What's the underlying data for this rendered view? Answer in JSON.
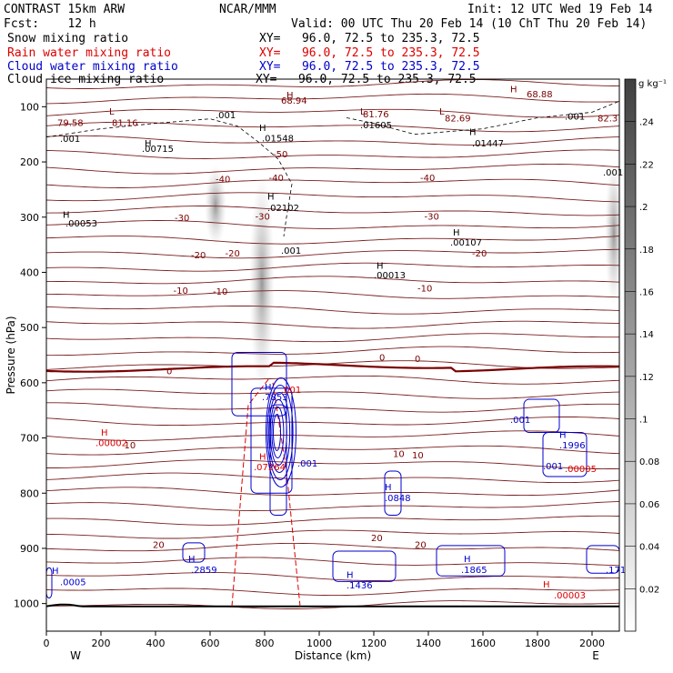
{
  "header": {
    "left1": "CONTRAST 15km ARW",
    "left2": "Fcst:    12 h",
    "center": "NCAR/MMM",
    "init": "Init: 12 UTC Wed 19 Feb 14",
    "valid": "Valid: 00 UTC Thu 20 Feb 14 (10 ChT Thu 20 Feb 14)",
    "fields": [
      {
        "name": "Snow mixing ratio",
        "xy": "XY=   96.0, 72.5 to 235.3, 72.5",
        "color": "#000000"
      },
      {
        "name": "Rain water mixing ratio",
        "xy": "XY=   96.0, 72.5 to 235.3, 72.5",
        "color": "#dd0000"
      },
      {
        "name": "Cloud water mixing ratio",
        "xy": "XY=   96.0, 72.5 to 235.3, 72.5",
        "color": "#0000cc"
      },
      {
        "name": "Cloud ice mixing ratio",
        "xy": "XY=   96.0, 72.5 to 235.3, 72.5",
        "color": "#000000"
      }
    ]
  },
  "chart_data": {
    "type": "cross-section contour",
    "xlabel": "Distance (km)",
    "ylabel": "Pressure (hPa)",
    "x_ticks": [
      0,
      200,
      400,
      600,
      800,
      1000,
      1200,
      1400,
      1600,
      1800,
      2000
    ],
    "y_ticks": [
      100,
      200,
      300,
      400,
      500,
      600,
      700,
      800,
      900,
      1000
    ],
    "xlim": [
      0,
      2100
    ],
    "ylim": [
      1050,
      50
    ],
    "end_labels": {
      "left": "W",
      "right": "E"
    },
    "colorbar": {
      "unit": "g kg⁻¹",
      "ticks": [
        "0.02",
        "0.04",
        "0.06",
        "0.08",
        ".1",
        ".12",
        ".14",
        ".16",
        ".18",
        ".2",
        ".22",
        ".24"
      ],
      "min": 0,
      "max": 0.26
    },
    "temperature_contour_labels": [
      {
        "text": "-50",
        "x": 830,
        "p": 185
      },
      {
        "text": "-40",
        "x": 620,
        "p": 230
      },
      {
        "text": "-40",
        "x": 815,
        "p": 228
      },
      {
        "text": "-40",
        "x": 1370,
        "p": 228
      },
      {
        "text": "-30",
        "x": 470,
        "p": 300
      },
      {
        "text": "-30",
        "x": 765,
        "p": 298
      },
      {
        "text": "-30",
        "x": 1385,
        "p": 298
      },
      {
        "text": "-20",
        "x": 530,
        "p": 368
      },
      {
        "text": "-20",
        "x": 655,
        "p": 365
      },
      {
        "text": "-20",
        "x": 1560,
        "p": 365
      },
      {
        "text": "-10",
        "x": 465,
        "p": 432
      },
      {
        "text": "-10",
        "x": 610,
        "p": 434
      },
      {
        "text": "-10",
        "x": 1360,
        "p": 428
      },
      {
        "text": "0",
        "x": 440,
        "p": 578
      },
      {
        "text": "0",
        "x": 1220,
        "p": 553
      },
      {
        "text": "0",
        "x": 1350,
        "p": 556
      },
      {
        "text": "10",
        "x": 285,
        "p": 712
      },
      {
        "text": "10",
        "x": 1270,
        "p": 728
      },
      {
        "text": "10",
        "x": 1340,
        "p": 730
      },
      {
        "text": "20",
        "x": 390,
        "p": 893
      },
      {
        "text": "20",
        "x": 1190,
        "p": 880
      },
      {
        "text": "20",
        "x": 1350,
        "p": 893
      }
    ],
    "maxima_labels": [
      {
        "text": "68.94",
        "x": 860,
        "p": 88,
        "color": "#7a0000"
      },
      {
        "text": "68.88",
        "x": 1760,
        "p": 76,
        "color": "#7a0000"
      },
      {
        "text": "79.58",
        "x": 40,
        "p": 128,
        "color": "#7a0000"
      },
      {
        "text": "81.16",
        "x": 240,
        "p": 128,
        "color": "#7a0000"
      },
      {
        "text": "81.76",
        "x": 1160,
        "p": 113,
        "color": "#7a0000"
      },
      {
        "text": "82.69",
        "x": 1460,
        "p": 120,
        "color": "#7a0000"
      },
      {
        "text": "82.3",
        "x": 2020,
        "p": 120,
        "color": "#7a0000"
      },
      {
        "text": ".001",
        "x": 620,
        "p": 114,
        "color": "#000000"
      },
      {
        "text": ".001",
        "x": 50,
        "p": 157,
        "color": "#000000"
      },
      {
        "text": ".01605",
        "x": 1150,
        "p": 132,
        "color": "#000000"
      },
      {
        "text": ".001",
        "x": 1900,
        "p": 117,
        "color": "#000000"
      },
      {
        "text": ".01548",
        "x": 790,
        "p": 156,
        "color": "#000000"
      },
      {
        "text": ".01447",
        "x": 1560,
        "p": 165,
        "color": "#000000"
      },
      {
        "text": ".00715",
        "x": 350,
        "p": 175,
        "color": "#000000"
      },
      {
        "text": ".001",
        "x": 2040,
        "p": 218,
        "color": "#000000"
      },
      {
        "text": ".02102",
        "x": 810,
        "p": 282,
        "color": "#000000"
      },
      {
        "text": ".00053",
        "x": 70,
        "p": 310,
        "color": "#000000"
      },
      {
        "text": ".00107",
        "x": 1480,
        "p": 345,
        "color": "#000000"
      },
      {
        "text": ".001",
        "x": 860,
        "p": 360,
        "color": "#000000"
      },
      {
        "text": ".00013",
        "x": 1200,
        "p": 404,
        "color": "#000000"
      },
      {
        "text": ".7853",
        "x": 790,
        "p": 625,
        "color": "#0000cc"
      },
      {
        "text": ".001",
        "x": 860,
        "p": 612,
        "color": "#dd0000"
      },
      {
        "text": ".001",
        "x": 1700,
        "p": 666,
        "color": "#0000cc"
      },
      {
        "text": ".1996",
        "x": 1880,
        "p": 712,
        "color": "#0000cc"
      },
      {
        "text": ".00002",
        "x": 180,
        "p": 708,
        "color": "#dd0000"
      },
      {
        "text": ".07264",
        "x": 760,
        "p": 752,
        "color": "#dd0000"
      },
      {
        "text": ".001",
        "x": 920,
        "p": 745,
        "color": "#0000cc"
      },
      {
        "text": ".001",
        "x": 1820,
        "p": 750,
        "color": "#0000cc"
      },
      {
        "text": ".00005",
        "x": 1900,
        "p": 755,
        "color": "#dd0000"
      },
      {
        "text": ".0848",
        "x": 1240,
        "p": 808,
        "color": "#0000cc"
      },
      {
        "text": ".2859",
        "x": 530,
        "p": 938,
        "color": "#0000cc"
      },
      {
        "text": ".1436",
        "x": 1100,
        "p": 966,
        "color": "#0000cc"
      },
      {
        "text": ".1865",
        "x": 1520,
        "p": 938,
        "color": "#0000cc"
      },
      {
        "text": ".171",
        "x": 2050,
        "p": 938,
        "color": "#0000cc"
      },
      {
        "text": ".0005",
        "x": 50,
        "p": 960,
        "color": "#0000cc"
      },
      {
        "text": ".00003",
        "x": 1860,
        "p": 984,
        "color": "#dd0000"
      }
    ],
    "h_markers": [
      {
        "x": 880,
        "p": 78,
        "color": "#7a0000"
      },
      {
        "x": 1700,
        "p": 67,
        "color": "#7a0000"
      },
      {
        "x": 230,
        "p": 108,
        "color": "#7a0000",
        "label": "L"
      },
      {
        "x": 1150,
        "p": 108,
        "color": "#7a0000",
        "label": "L"
      },
      {
        "x": 1440,
        "p": 108,
        "color": "#7a0000",
        "label": "L"
      },
      {
        "x": 780,
        "p": 137,
        "color": "#000000"
      },
      {
        "x": 1550,
        "p": 145,
        "color": "#000000"
      },
      {
        "x": 360,
        "p": 165,
        "color": "#000000"
      },
      {
        "x": 810,
        "p": 262,
        "color": "#000000"
      },
      {
        "x": 60,
        "p": 295,
        "color": "#000000"
      },
      {
        "x": 1490,
        "p": 327,
        "color": "#000000"
      },
      {
        "x": 1210,
        "p": 387,
        "color": "#000000"
      },
      {
        "x": 800,
        "p": 607,
        "color": "#0000cc"
      },
      {
        "x": 1880,
        "p": 693,
        "color": "#0000cc"
      },
      {
        "x": 200,
        "p": 689,
        "color": "#dd0000"
      },
      {
        "x": 780,
        "p": 733,
        "color": "#dd0000"
      },
      {
        "x": 1240,
        "p": 788,
        "color": "#0000cc"
      },
      {
        "x": 520,
        "p": 918,
        "color": "#0000cc"
      },
      {
        "x": 1100,
        "p": 947,
        "color": "#0000cc"
      },
      {
        "x": 1530,
        "p": 918,
        "color": "#0000cc"
      },
      {
        "x": 20,
        "p": 940,
        "color": "#0000cc"
      },
      {
        "x": 1820,
        "p": 964,
        "color": "#dd0000"
      }
    ]
  }
}
